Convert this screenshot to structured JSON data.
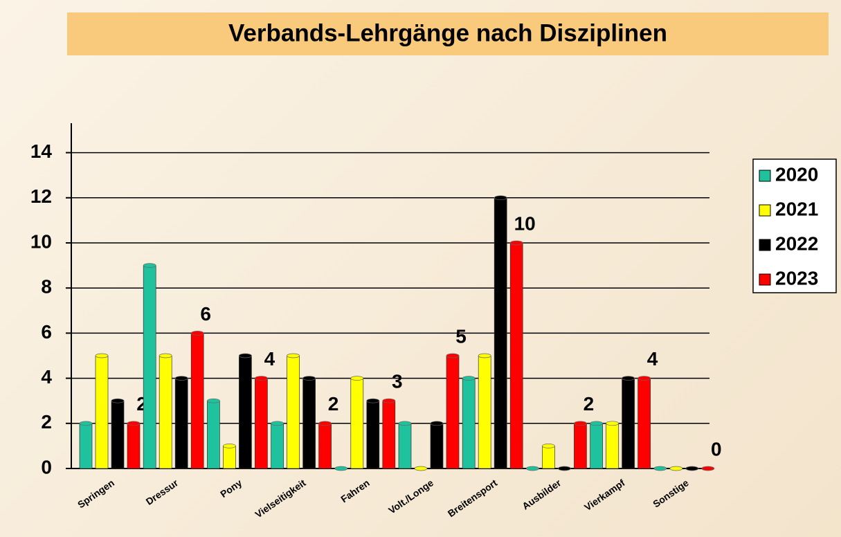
{
  "chart_data": {
    "type": "bar",
    "title": "Verbands-Lehrgänge nach Disziplinen",
    "categories": [
      "Springen",
      "Dressur",
      "Pony",
      "Vielseitigkeit",
      "Fahren",
      "Volt./Longe",
      "Breitensport",
      "Ausbilder",
      "Vierkampf",
      "Sonstige"
    ],
    "series": [
      {
        "name": "2020",
        "color": "#1fc29c",
        "values": [
          2,
          9,
          3,
          2,
          0,
          2,
          4,
          0,
          2,
          0
        ]
      },
      {
        "name": "2021",
        "color": "#ffff00",
        "values": [
          5,
          5,
          1,
          5,
          4,
          0,
          5,
          1,
          2,
          0
        ]
      },
      {
        "name": "2022",
        "color": "#000000",
        "values": [
          3,
          4,
          5,
          4,
          3,
          2,
          12,
          0,
          4,
          0
        ]
      },
      {
        "name": "2023",
        "color": "#ff0000",
        "values": [
          2,
          6,
          4,
          2,
          3,
          5,
          10,
          2,
          4,
          0
        ],
        "data_labels": true
      }
    ],
    "ylim": [
      0,
      15
    ],
    "yticks": [
      0,
      2,
      4,
      6,
      8,
      10,
      12,
      14
    ],
    "grid": true,
    "legend": "right"
  }
}
